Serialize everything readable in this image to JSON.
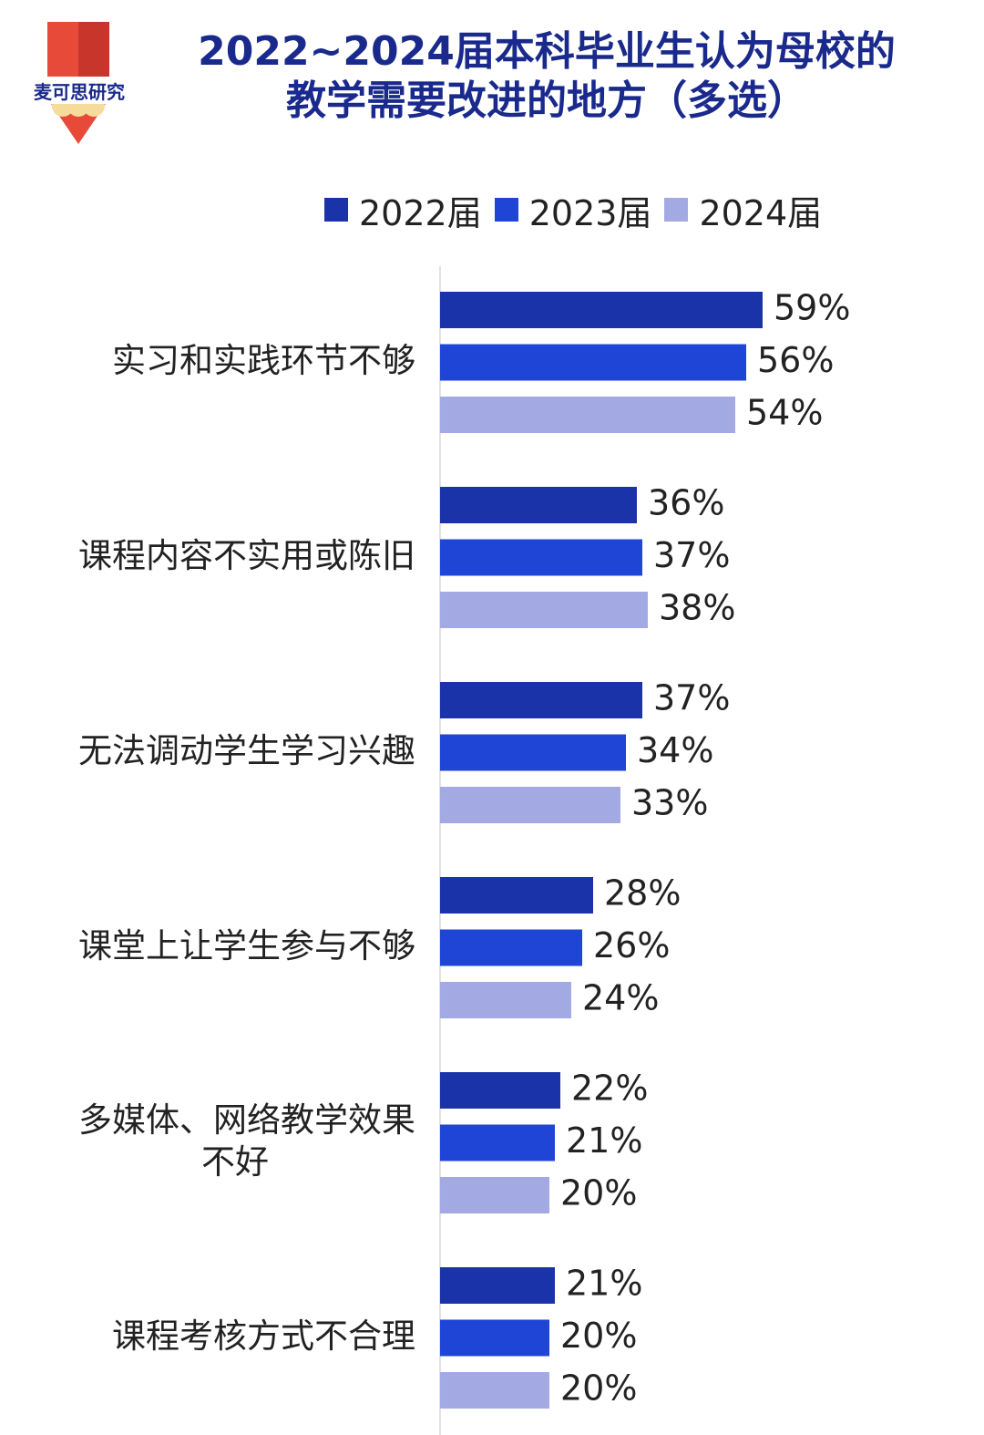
{
  "brand": {
    "logo_text": "麦可思研究",
    "colors": {
      "red": "#e84a3a",
      "red_dark": "#c8352a",
      "yellow": "#f6dc9a"
    }
  },
  "chart_data": {
    "type": "bar",
    "orientation": "horizontal",
    "title_lines": [
      "2022~2024届本科毕业生认为母校的",
      "教学需要改进的地方（多选）"
    ],
    "categories": [
      [
        "实习和实践环节不够"
      ],
      [
        "课程内容不实用或陈旧"
      ],
      [
        "无法调动学生学习兴趣"
      ],
      [
        "课堂上让学生参与不够"
      ],
      [
        "多媒体、网络教学效果",
        "不好"
      ],
      [
        "课程考核方式不合理"
      ]
    ],
    "series": [
      {
        "name": "2022届",
        "color": "#1a33a8",
        "values": [
          59,
          36,
          37,
          28,
          22,
          21
        ]
      },
      {
        "name": "2023届",
        "color": "#1f45d6",
        "values": [
          56,
          37,
          34,
          26,
          21,
          20
        ]
      },
      {
        "name": "2024届",
        "color": "#a3a9e3",
        "values": [
          54,
          38,
          33,
          24,
          20,
          20
        ]
      }
    ],
    "value_suffix": "%",
    "xlim": [
      0,
      100
    ],
    "legend_position": "top",
    "grid": false
  }
}
